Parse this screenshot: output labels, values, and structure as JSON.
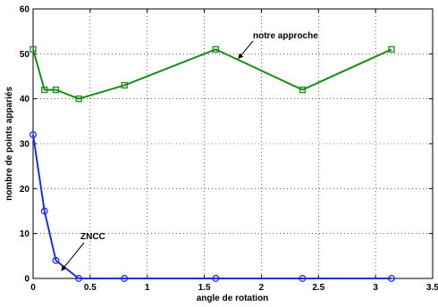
{
  "chart_data": {
    "type": "line",
    "title": "",
    "xlabel": "angle de rotation",
    "ylabel": "nombre de points appariés",
    "xlim": [
      0,
      3.5
    ],
    "ylim": [
      0,
      60
    ],
    "xticks": [
      0,
      0.5,
      1,
      1.5,
      2,
      2.5,
      3,
      3.5
    ],
    "yticks": [
      0,
      10,
      20,
      30,
      40,
      50,
      60
    ],
    "xtick_labels": [
      "0",
      "0.5",
      "1",
      "1.5",
      "2",
      "2.5",
      "3",
      "3.5"
    ],
    "ytick_labels": [
      "0",
      "10",
      "20",
      "30",
      "40",
      "50",
      "60"
    ],
    "grid": true,
    "series": [
      {
        "name": "notre approche",
        "color": "#1a8a1a",
        "marker": "square",
        "x": [
          0,
          0.1,
          0.2,
          0.4,
          0.8,
          1.6,
          2.36,
          3.14
        ],
        "y": [
          51,
          42,
          42,
          40,
          43,
          51,
          42,
          51
        ]
      },
      {
        "name": "ZNCC",
        "color": "#1f2fd6",
        "marker": "circle",
        "x": [
          0,
          0.1,
          0.2,
          0.4,
          0.8,
          1.6,
          2.36,
          3.14
        ],
        "y": [
          32,
          15,
          4,
          0,
          0,
          0,
          0,
          0
        ]
      }
    ],
    "annotations": [
      {
        "text": "notre approche",
        "series": "notre approche",
        "point_x": 1.8,
        "point_y": 49
      },
      {
        "text": "ZNCC",
        "series": "ZNCC",
        "point_x": 0.25,
        "point_y": 1.8
      }
    ]
  }
}
